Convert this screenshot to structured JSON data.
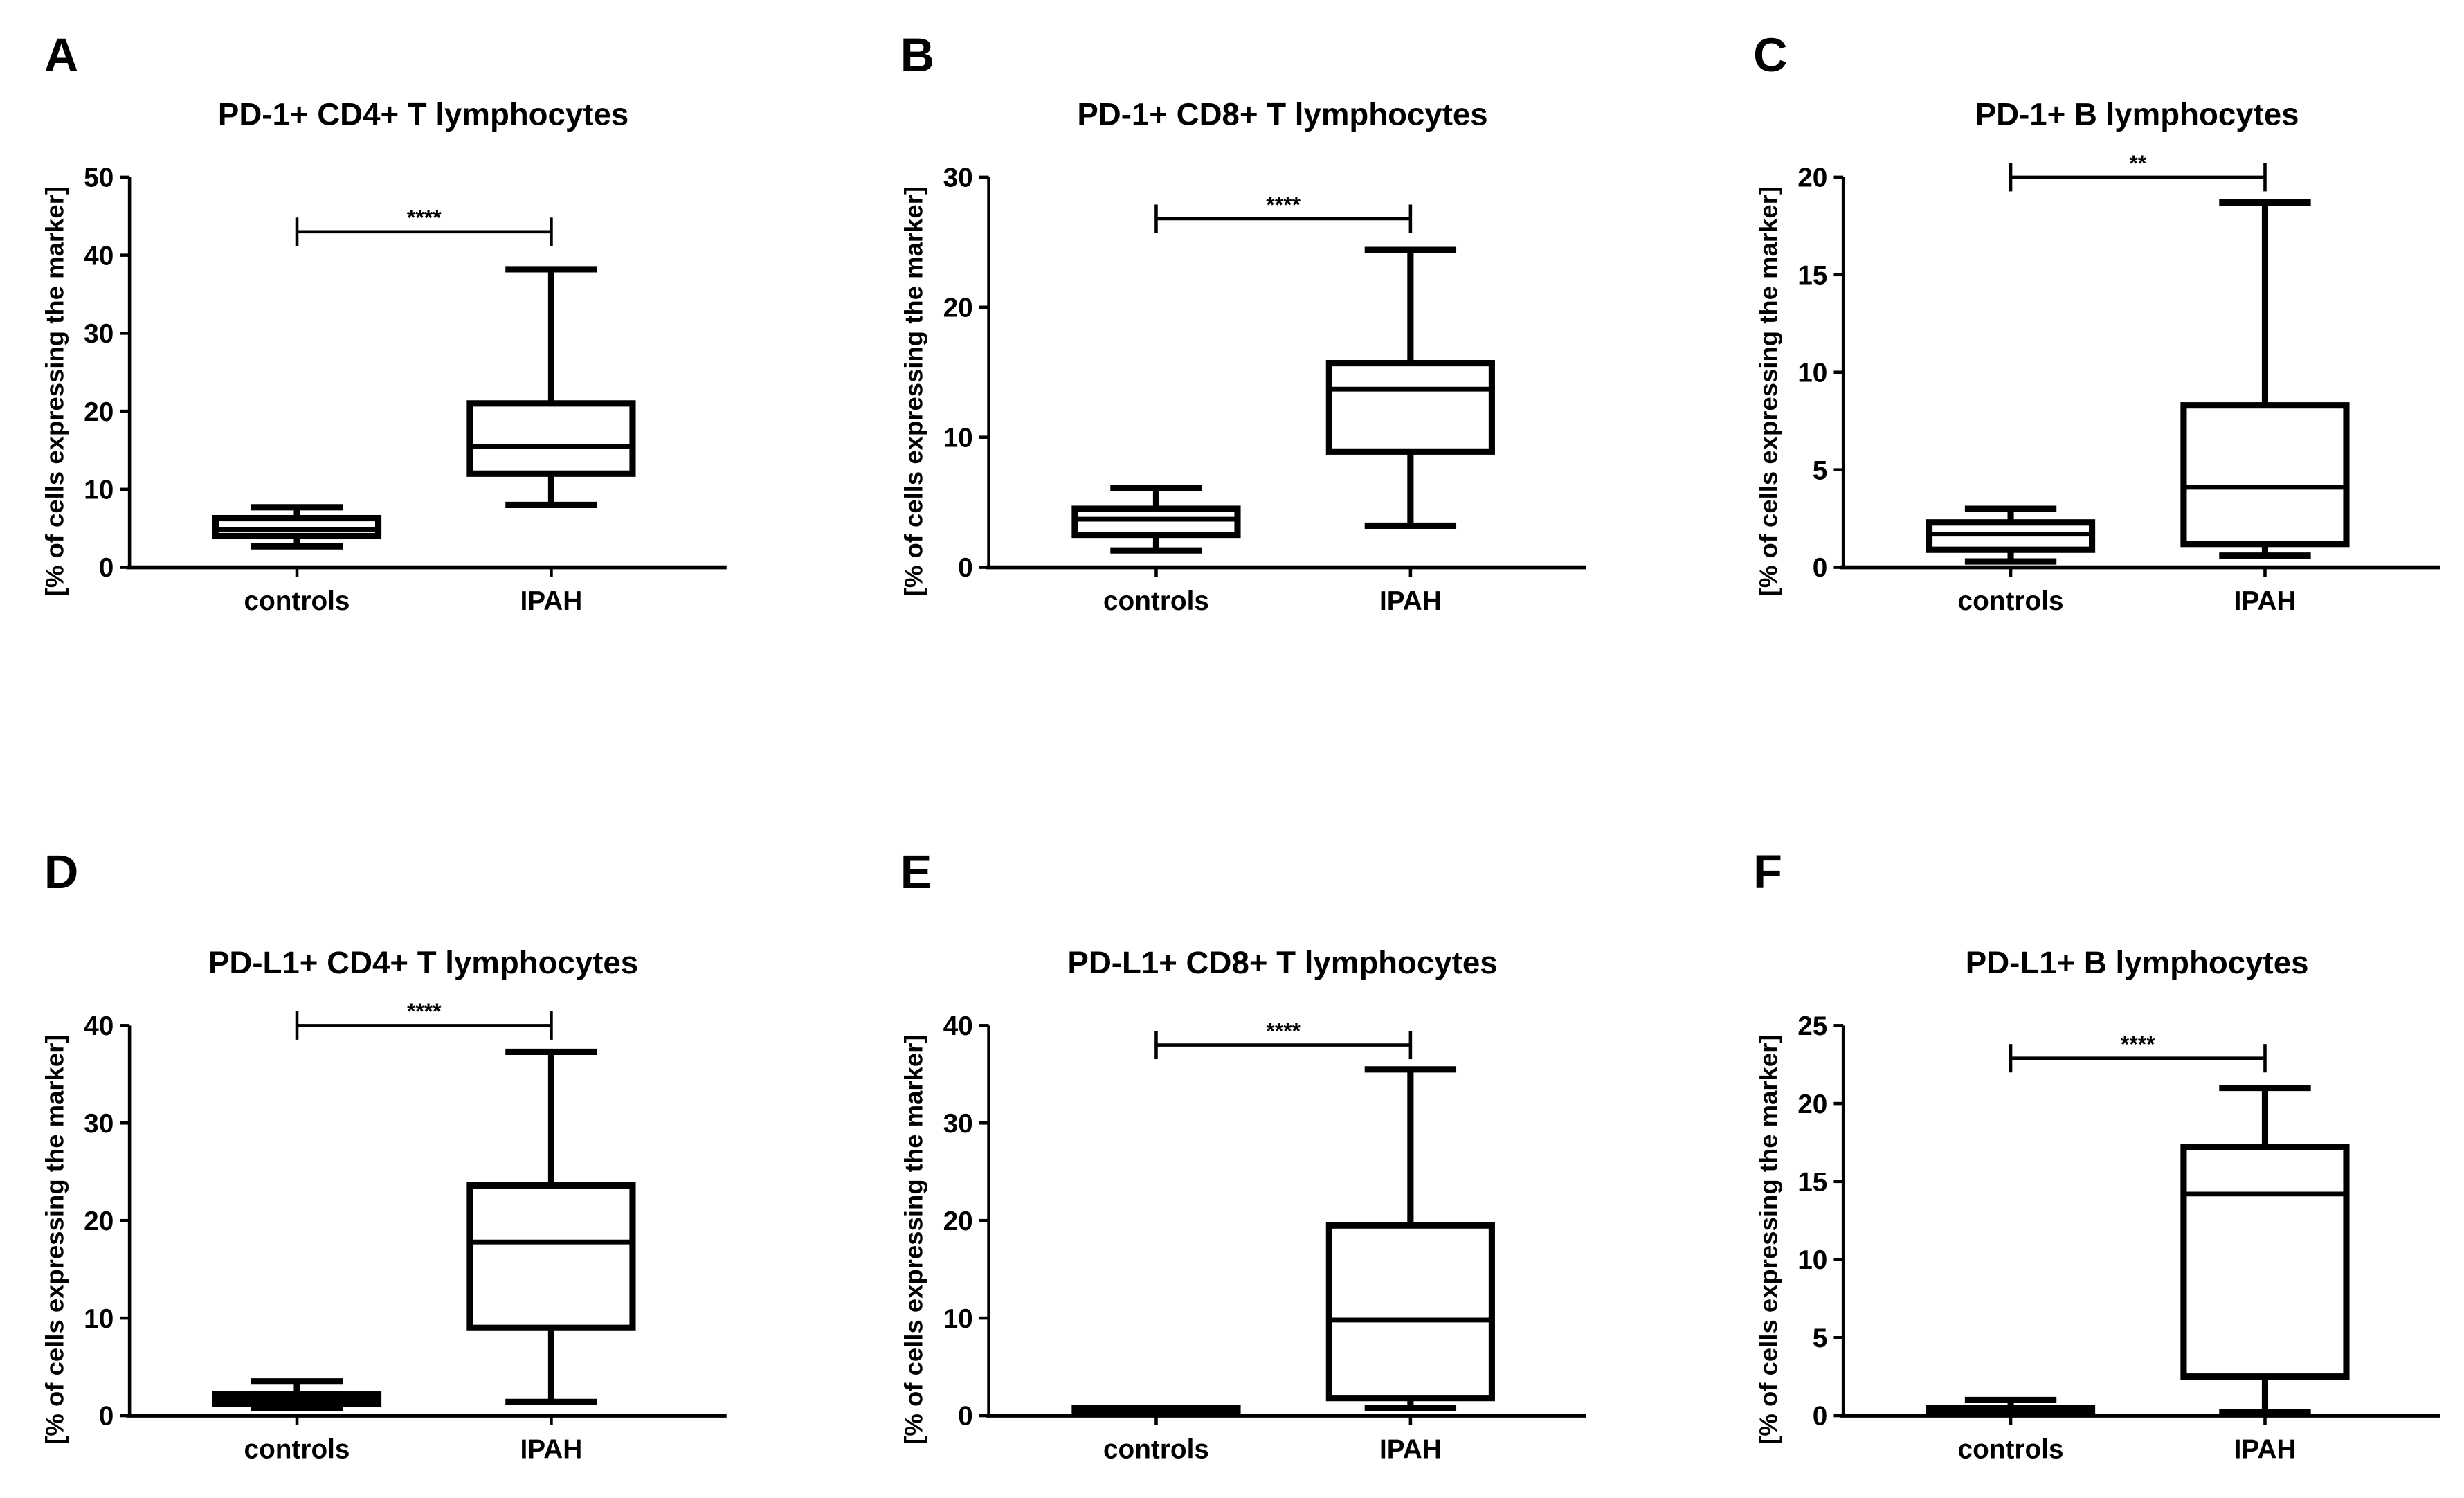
{
  "chart_data": [
    {
      "panel": "A",
      "type": "box",
      "title": "PD-1+ CD4+ T lymphocytes",
      "ylabel": "[% of cells expressing the marker]",
      "ylim": [
        0,
        50
      ],
      "yticks": [
        0,
        10,
        20,
        30,
        40,
        50
      ],
      "categories": [
        "controls",
        "IPAH"
      ],
      "boxes": [
        {
          "min": 2.7,
          "q1": 4.0,
          "median": 4.8,
          "q3": 6.3,
          "max": 7.7
        },
        {
          "min": 8.0,
          "q1": 12.0,
          "median": 15.5,
          "q3": 21.0,
          "max": 38.2
        }
      ],
      "significance": {
        "label": "****",
        "y": 43
      }
    },
    {
      "panel": "B",
      "type": "box",
      "title": "PD-1+ CD8+ T lymphocytes",
      "ylabel": "[% of cells expressing the marker]",
      "ylim": [
        0,
        30
      ],
      "yticks": [
        0,
        10,
        20,
        30
      ],
      "categories": [
        "controls",
        "IPAH"
      ],
      "boxes": [
        {
          "min": 1.3,
          "q1": 2.5,
          "median": 3.7,
          "q3": 4.5,
          "max": 6.1
        },
        {
          "min": 3.2,
          "q1": 8.9,
          "median": 13.7,
          "q3": 15.7,
          "max": 24.4
        }
      ],
      "significance": {
        "label": "****",
        "y": 26.8
      }
    },
    {
      "panel": "C",
      "type": "box",
      "title": "PD-1+ B lymphocytes",
      "ylabel": "[% of cells expressing the marker]",
      "ylim": [
        0,
        20
      ],
      "yticks": [
        0,
        5,
        10,
        15,
        20
      ],
      "categories": [
        "controls",
        "IPAH"
      ],
      "boxes": [
        {
          "min": 0.3,
          "q1": 0.9,
          "median": 1.7,
          "q3": 2.3,
          "max": 3.0
        },
        {
          "min": 0.6,
          "q1": 1.2,
          "median": 4.1,
          "q3": 8.3,
          "max": 18.7
        }
      ],
      "significance": {
        "label": "**",
        "y": 20
      }
    },
    {
      "panel": "D",
      "type": "box",
      "title": "PD-L1+ CD4+ T lymphocytes",
      "ylabel": "[% of cells expressing the marker]",
      "ylim": [
        0,
        40
      ],
      "yticks": [
        0,
        10,
        20,
        30,
        40
      ],
      "categories": [
        "controls",
        "IPAH"
      ],
      "boxes": [
        {
          "min": 0.8,
          "q1": 1.2,
          "median": 1.7,
          "q3": 2.2,
          "max": 3.5
        },
        {
          "min": 1.4,
          "q1": 9.0,
          "median": 17.8,
          "q3": 23.6,
          "max": 37.3
        }
      ],
      "significance": {
        "label": "****",
        "y": 40
      }
    },
    {
      "panel": "E",
      "type": "box",
      "title": "PD-L1+ CD8+ T lymphocytes",
      "ylabel": "[% of cells expressing the marker]",
      "ylim": [
        0,
        40
      ],
      "yticks": [
        0,
        10,
        20,
        30,
        40
      ],
      "categories": [
        "controls",
        "IPAH"
      ],
      "boxes": [
        {
          "min": 0.2,
          "q1": 0.3,
          "median": 0.5,
          "q3": 0.8,
          "max": 0.8
        },
        {
          "min": 0.8,
          "q1": 1.8,
          "median": 9.8,
          "q3": 19.5,
          "max": 35.5
        }
      ],
      "significance": {
        "label": "****",
        "y": 38
      }
    },
    {
      "panel": "F",
      "type": "box",
      "title": "PD-L1+ B lymphocytes",
      "ylabel": "[% of cells expressing the marker]",
      "ylim": [
        0,
        25
      ],
      "yticks": [
        0,
        5,
        10,
        15,
        20,
        25
      ],
      "categories": [
        "controls",
        "IPAH"
      ],
      "boxes": [
        {
          "min": 0.1,
          "q1": 0.2,
          "median": 0.3,
          "q3": 0.5,
          "max": 1.0
        },
        {
          "min": 0.2,
          "q1": 2.5,
          "median": 14.2,
          "q3": 17.2,
          "max": 21.0
        }
      ],
      "significance": {
        "label": "****",
        "y": 22.9
      }
    }
  ]
}
